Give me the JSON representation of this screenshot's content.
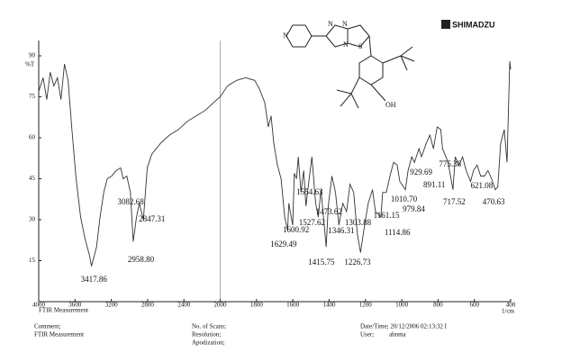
{
  "chart_data": {
    "type": "line",
    "series": [
      {
        "color": "#333333",
        "x": [
          4000,
          3951,
          3912,
          3873,
          3833,
          3794,
          3755,
          3716,
          3676,
          3637,
          3588,
          3539,
          3490,
          3441,
          3418,
          3363,
          3324,
          3284,
          3245,
          3196,
          3147,
          3098,
          3083,
          3069,
          3029,
          2990,
          2959,
          2922,
          2892,
          2847,
          2804,
          2755,
          2657,
          2559,
          2461,
          2363,
          2265,
          2167,
          2069,
          2000,
          1960,
          1910,
          1860,
          1810,
          1785,
          1755,
          1735,
          1720,
          1705,
          1685,
          1665,
          1645,
          1629,
          1622,
          1601,
          1592,
          1580,
          1570,
          1555,
          1540,
          1528,
          1510,
          1495,
          1474,
          1460,
          1445,
          1416,
          1405,
          1385,
          1365,
          1346,
          1325,
          1304,
          1285,
          1265,
          1245,
          1227,
          1205,
          1185,
          1161,
          1145,
          1115,
          1105,
          1085,
          1065,
          1045,
          1025,
          1011,
          980,
          965,
          945,
          930,
          905,
          891,
          865,
          845,
          825,
          805,
          785,
          775,
          745,
          718,
          705,
          685,
          665,
          645,
          621,
          605,
          585,
          565,
          545,
          525,
          505,
          485,
          471,
          455,
          435,
          420,
          405,
          400
        ],
        "values": [
          77,
          82,
          74,
          84,
          79,
          82,
          74,
          87,
          81,
          64,
          45,
          31,
          23,
          17,
          13,
          20,
          31,
          40,
          45,
          46,
          48,
          49,
          47,
          45,
          46,
          40,
          22,
          31,
          36,
          30,
          49,
          54,
          58,
          61,
          63,
          66,
          68,
          70,
          73,
          75,
          79,
          81,
          82,
          81,
          78,
          73,
          64,
          68,
          58,
          50,
          45,
          31,
          26,
          36,
          28,
          47,
          45,
          53,
          40,
          48,
          35,
          45,
          53,
          36,
          31,
          41,
          20,
          35,
          46,
          40,
          28,
          36,
          33,
          43,
          40,
          25,
          18,
          28,
          36,
          41,
          33,
          31,
          40,
          40,
          46,
          51,
          50,
          44,
          41,
          48,
          53,
          51,
          56,
          53,
          58,
          61,
          56,
          64,
          63,
          56,
          51,
          41,
          53,
          50,
          53,
          48,
          44,
          48,
          50,
          46,
          46,
          48,
          45,
          41,
          42,
          58,
          63,
          51,
          88,
          85
        ]
      }
    ],
    "xlim": [
      4000,
      400
    ],
    "x_scale_change": {
      "at": 2000,
      "factor": 2
    },
    "xticks": [
      4000,
      3600,
      3200,
      2800,
      2400,
      2000,
      1800,
      1600,
      1400,
      1200,
      1000,
      800,
      600,
      400
    ],
    "xlabel": "1/cm",
    "ylabel": "%T",
    "ylim": [
      0,
      90
    ],
    "yticks": [
      15,
      30,
      45,
      60,
      75,
      90
    ],
    "peaks": [
      {
        "value": 3417.86,
        "label": "3417.86"
      },
      {
        "value": 3082.68,
        "label": "3082.68"
      },
      {
        "value": 2958.8,
        "label": "2958.80"
      },
      {
        "value": 2847.31,
        "label": "2847.31"
      },
      {
        "value": 1629.49,
        "label": "1629.49"
      },
      {
        "value": 1600.92,
        "label": "1600.92"
      },
      {
        "value": 1554.63,
        "label": "1554.63"
      },
      {
        "value": 1527.62,
        "label": "1527.62"
      },
      {
        "value": 1473.62,
        "label": "1473.62"
      },
      {
        "value": 1415.75,
        "label": "1415.75"
      },
      {
        "value": 1346.31,
        "label": "1346.31"
      },
      {
        "value": 1303.88,
        "label": "1303.88"
      },
      {
        "value": 1226.73,
        "label": "1226.73"
      },
      {
        "value": 1161.15,
        "label": "1161.15"
      },
      {
        "value": 1114.86,
        "label": "1114.86"
      },
      {
        "value": 1010.7,
        "label": "1010.70"
      },
      {
        "value": 979.84,
        "label": "979.84"
      },
      {
        "value": 929.69,
        "label": "929.69"
      },
      {
        "value": 891.11,
        "label": "891.11"
      },
      {
        "value": 775.38,
        "label": "775.38"
      },
      {
        "value": 717.52,
        "label": "717.52"
      },
      {
        "value": 621.08,
        "label": "621.08"
      },
      {
        "value": 470.63,
        "label": "470.63"
      }
    ]
  },
  "header": {
    "brand": "SHIMADZU",
    "measurement": "FTIR Measurement"
  },
  "structure": {
    "labels": [
      "N",
      "N",
      "N",
      "N",
      "S",
      "OH"
    ]
  },
  "footer": {
    "comment": "Comment;",
    "comment_value": "FTIR Measurement",
    "scans": "No. of Scans;",
    "resolution": "Resolution;",
    "apodization": "Apodization;",
    "datetime": "Date/Time; 20/12/2006 02:13:32 I",
    "user": "User;",
    "user_value": "abnma"
  }
}
